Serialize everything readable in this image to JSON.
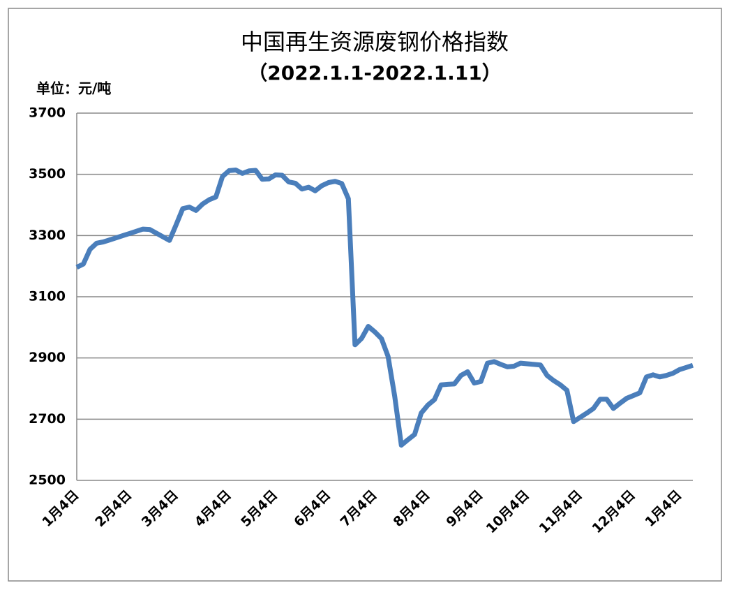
{
  "chart_data": {
    "type": "line",
    "title": "中国再生资源废钢价格指数",
    "subtitle": "（2022.1.1-2022.1.11）",
    "y_axis_label": "单位：元/吨",
    "categories": [
      "1月4日",
      null,
      null,
      null,
      null,
      null,
      null,
      null,
      "2月4日",
      null,
      null,
      null,
      null,
      null,
      null,
      "3月4日",
      null,
      null,
      null,
      null,
      null,
      null,
      null,
      "4月4日",
      null,
      null,
      null,
      null,
      null,
      null,
      "5月4日",
      null,
      null,
      null,
      null,
      null,
      null,
      null,
      "6月4日",
      null,
      null,
      null,
      null,
      null,
      null,
      "7月4日",
      null,
      null,
      null,
      null,
      null,
      null,
      null,
      "8月4日",
      null,
      null,
      null,
      null,
      null,
      null,
      null,
      "9月4日",
      null,
      null,
      null,
      null,
      null,
      null,
      "10月4日",
      null,
      null,
      null,
      null,
      null,
      null,
      null,
      "11月4日",
      null,
      null,
      null,
      null,
      null,
      null,
      null,
      "12月4日",
      null,
      null,
      null,
      null,
      null,
      null,
      "1月4日",
      null,
      null
    ],
    "series": [
      {
        "name": "中国再生资源废钢价格指数",
        "color": "#4a7ebb",
        "values": [
          3196,
          3207,
          3255,
          3275,
          3279,
          3286,
          3293,
          3300,
          3307,
          3314,
          3321,
          3320,
          3308,
          3296,
          3284,
          3335,
          3388,
          3393,
          3382,
          3403,
          3417,
          3426,
          3493,
          3512,
          3514,
          3503,
          3511,
          3513,
          3484,
          3485,
          3498,
          3497,
          3475,
          3471,
          3452,
          3458,
          3446,
          3463,
          3473,
          3477,
          3470,
          3420,
          2943,
          2964,
          3003,
          2985,
          2963,
          2905,
          2775,
          2615,
          2633,
          2650,
          2720,
          2746,
          2764,
          2812,
          2814,
          2815,
          2843,
          2855,
          2818,
          2823,
          2883,
          2888,
          2879,
          2871,
          2873,
          2883,
          2881,
          2879,
          2877,
          2843,
          2826,
          2812,
          2794,
          2692,
          2706,
          2720,
          2735,
          2765,
          2765,
          2735,
          2752,
          2768,
          2777,
          2786,
          2838,
          2845,
          2838,
          2843,
          2850,
          2862,
          2869,
          2876
        ]
      }
    ],
    "ylim": [
      2500,
      3700
    ],
    "yticks": [
      2500,
      2700,
      2900,
      3100,
      3300,
      3500,
      3700
    ],
    "grid": true
  }
}
